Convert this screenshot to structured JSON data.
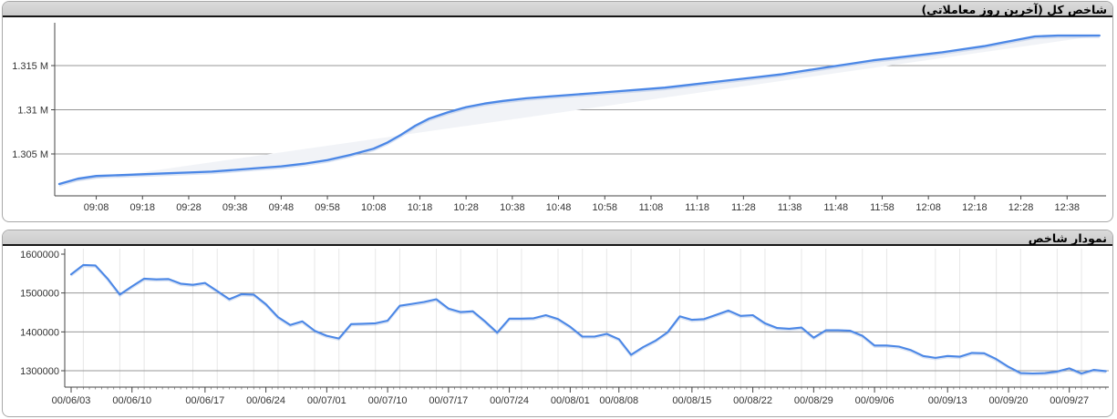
{
  "colors": {
    "line_blue": "#4b87e6",
    "line_shadow": "rgba(150,175,220,0.35)",
    "area_fill": "#f1f3f7",
    "grid_major": "#979797",
    "grid_light": "#e7e7e7",
    "axis": "#444444",
    "tick_text": "#333333",
    "header_bg": "#d3d3d3",
    "header_underline": "#161616",
    "panel_border": "#a8a8a8"
  },
  "chart_data": [
    {
      "type": "line",
      "title": "شاخص کل (آخرین روز معاملاتی)",
      "x_type": "time",
      "x_start": "09:00",
      "x_end": "12:45",
      "x_tick_labels": [
        "09:08",
        "09:18",
        "09:28",
        "09:38",
        "09:48",
        "09:58",
        "10:08",
        "10:18",
        "10:28",
        "10:38",
        "10:48",
        "10:58",
        "11:08",
        "11:18",
        "11:28",
        "11:38",
        "11:48",
        "11:58",
        "12:08",
        "12:18",
        "12:28",
        "12:38"
      ],
      "yticks": [
        {
          "label": "1.315 M",
          "value": 1.315,
          "grid": true
        },
        {
          "label": "1.31 M",
          "value": 1.31,
          "grid": true
        },
        {
          "label": "1.305 M",
          "value": 1.305,
          "grid": true
        }
      ],
      "ylim": [
        1.3003,
        1.3196
      ],
      "legend": "none",
      "grid": "horizontal",
      "points": [
        [
          0,
          1.3016
        ],
        [
          4,
          1.3022
        ],
        [
          8,
          1.3025
        ],
        [
          13,
          1.3026
        ],
        [
          18,
          1.3027
        ],
        [
          23,
          1.3028
        ],
        [
          28,
          1.3029
        ],
        [
          33,
          1.303
        ],
        [
          38,
          1.3032
        ],
        [
          43,
          1.3034
        ],
        [
          48,
          1.3036
        ],
        [
          53,
          1.3039
        ],
        [
          58,
          1.3043
        ],
        [
          63,
          1.3049
        ],
        [
          68,
          1.3056
        ],
        [
          71,
          1.3063
        ],
        [
          74,
          1.3072
        ],
        [
          77,
          1.3082
        ],
        [
          80,
          1.309
        ],
        [
          84,
          1.3097
        ],
        [
          88,
          1.3103
        ],
        [
          92,
          1.3107
        ],
        [
          96,
          1.311
        ],
        [
          101,
          1.3113
        ],
        [
          106,
          1.3115
        ],
        [
          111,
          1.3117
        ],
        [
          116,
          1.3119
        ],
        [
          121,
          1.3121
        ],
        [
          126,
          1.3123
        ],
        [
          131,
          1.3125
        ],
        [
          136,
          1.3128
        ],
        [
          141,
          1.3131
        ],
        [
          146,
          1.3134
        ],
        [
          151,
          1.3137
        ],
        [
          156,
          1.314
        ],
        [
          161,
          1.3144
        ],
        [
          166,
          1.3148
        ],
        [
          171,
          1.3152
        ],
        [
          176,
          1.3156
        ],
        [
          181,
          1.3159
        ],
        [
          186,
          1.3162
        ],
        [
          191,
          1.3165
        ],
        [
          196,
          1.3169
        ],
        [
          200,
          1.3172
        ],
        [
          204,
          1.3176
        ],
        [
          208,
          1.318
        ],
        [
          211,
          1.3183
        ],
        [
          216,
          1.3184
        ],
        [
          221,
          1.3184
        ],
        [
          225,
          1.3184
        ]
      ]
    },
    {
      "type": "line",
      "title": "نمودار شاخص",
      "x_type": "category",
      "x_tick_labels": [
        "00/06/03",
        "00/06/10",
        "00/06/17",
        "00/06/24",
        "00/07/01",
        "00/07/10",
        "00/07/17",
        "00/07/24",
        "00/08/01",
        "00/08/08",
        "00/08/15",
        "00/08/22",
        "00/08/29",
        "00/09/06",
        "00/09/13",
        "00/09/20",
        "00/09/27"
      ],
      "label_indices": [
        0,
        5,
        11,
        16,
        21,
        26,
        31,
        36,
        41,
        45,
        51,
        56,
        61,
        66,
        72,
        77,
        82
      ],
      "yticks": [
        {
          "label": "1600000",
          "value": 1600000,
          "grid": false
        },
        {
          "label": "1500000",
          "value": 1500000,
          "grid": true
        },
        {
          "label": "1400000",
          "value": 1400000,
          "grid": true
        },
        {
          "label": "1300000",
          "value": 1300000,
          "grid": true
        }
      ],
      "ylim": [
        1258000,
        1614000
      ],
      "legend": "none",
      "grid": "both",
      "values": [
        1548000,
        1572000,
        1571000,
        1537000,
        1496000,
        1517000,
        1537000,
        1535000,
        1536000,
        1524000,
        1521000,
        1526000,
        1505000,
        1484000,
        1497000,
        1496000,
        1471000,
        1438000,
        1418000,
        1427000,
        1403000,
        1390000,
        1383000,
        1420000,
        1421000,
        1422000,
        1429000,
        1467000,
        1472000,
        1477000,
        1484000,
        1460000,
        1451000,
        1453000,
        1427000,
        1398000,
        1434000,
        1434000,
        1435000,
        1443000,
        1433000,
        1413000,
        1388000,
        1388000,
        1395000,
        1381000,
        1341000,
        1361000,
        1377000,
        1399000,
        1440000,
        1431000,
        1433000,
        1444000,
        1455000,
        1441000,
        1443000,
        1422000,
        1410000,
        1408000,
        1411000,
        1385000,
        1404000,
        1404000,
        1403000,
        1390000,
        1365000,
        1365000,
        1362000,
        1353000,
        1338000,
        1333000,
        1338000,
        1336000,
        1346000,
        1345000,
        1330000,
        1310000,
        1294000,
        1293000,
        1294000,
        1298000,
        1306000,
        1293000,
        1302000,
        1299000
      ]
    }
  ]
}
